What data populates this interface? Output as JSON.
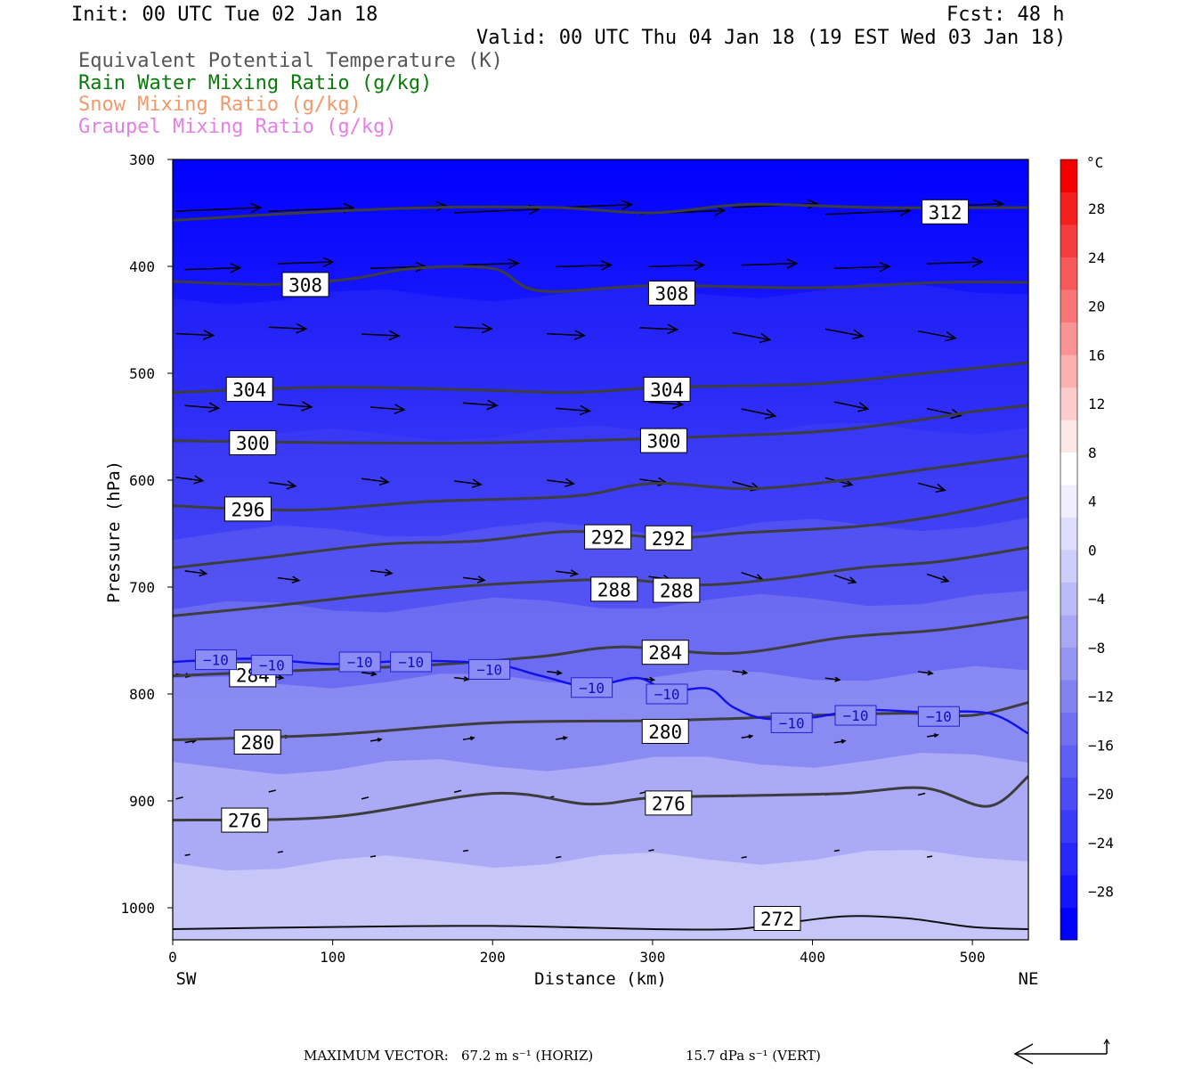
{
  "header": {
    "init": "Init: 00 UTC Tue 02 Jan 18",
    "fcst": "Fcst:   48 h",
    "valid": "Valid: 00 UTC Thu 04 Jan 18 (19 EST Wed 03 Jan 18)"
  },
  "legend": [
    {
      "text": "Equivalent Potential Temperature (K)",
      "color": "#555555"
    },
    {
      "text": "Rain Water Mixing Ratio (g/kg)",
      "color": "#0a7a0a"
    },
    {
      "text": "Snow Mixing Ratio (g/kg)",
      "color": "#f0996a"
    },
    {
      "text": "Graupel Mixing Ratio (g/kg)",
      "color": "#e67ee6"
    }
  ],
  "footer": {
    "label": "MAXIMUM VECTOR:",
    "horiz": "67.2 m s⁻¹ (HORIZ)",
    "vert": "15.7 dPa s⁻¹ (VERT)"
  },
  "chart_data": {
    "type": "heatmap",
    "title": "Equivalent Potential Temperature (K)",
    "xlabel": "Distance (km)",
    "ylabel": "Pressure (hPa)",
    "xlim": [
      0,
      535
    ],
    "ylim": [
      1030,
      300
    ],
    "x_ticks": [
      0,
      100,
      200,
      300,
      400,
      500
    ],
    "y_ticks": [
      300,
      400,
      500,
      600,
      700,
      800,
      900,
      1000
    ],
    "x_left_label": "SW",
    "x_right_label": "NE",
    "colorbar": {
      "unit": "°C",
      "ticks": [
        "28",
        "24",
        "20",
        "16",
        "12",
        "8",
        "4",
        "0",
        "−4",
        "−8",
        "−12",
        "−16",
        "−20",
        "−24",
        "−28"
      ],
      "colors": [
        "#0000ff",
        "#1414ff",
        "#2828fb",
        "#3a3af7",
        "#4c4cf4",
        "#5e5ef2",
        "#7070f1",
        "#8282f1",
        "#9595f3",
        "#a8a8f5",
        "#bbbbf8",
        "#cdcdfa",
        "#dedefc",
        "#efeffe",
        "#ffffff",
        "#fde6e6",
        "#fccbcb",
        "#fbb0b0",
        "#fa9393",
        "#f87676",
        "#f75a5a",
        "#f53d3d",
        "#f42020",
        "#f20000"
      ]
    },
    "theta_e_contours": [
      {
        "level": 312,
        "points": [
          [
            0,
            357
          ],
          [
            80,
            350
          ],
          [
            160,
            345
          ],
          [
            240,
            345
          ],
          [
            300,
            350
          ],
          [
            360,
            342
          ],
          [
            440,
            345
          ],
          [
            535,
            345
          ]
        ]
      },
      {
        "level": 308,
        "points": [
          [
            0,
            414
          ],
          [
            60,
            417
          ],
          [
            110,
            412
          ],
          [
            150,
            402
          ],
          [
            200,
            402
          ],
          [
            230,
            423
          ],
          [
            300,
            418
          ],
          [
            400,
            420
          ],
          [
            480,
            415
          ],
          [
            535,
            415
          ]
        ]
      },
      {
        "level": 304,
        "points": [
          [
            0,
            518
          ],
          [
            100,
            513
          ],
          [
            200,
            516
          ],
          [
            250,
            518
          ],
          [
            310,
            513
          ],
          [
            400,
            510
          ],
          [
            470,
            500
          ],
          [
            535,
            490
          ]
        ]
      },
      {
        "level": 300,
        "points": [
          [
            0,
            563
          ],
          [
            100,
            565
          ],
          [
            200,
            565
          ],
          [
            300,
            561
          ],
          [
            400,
            555
          ],
          [
            460,
            545
          ],
          [
            500,
            536
          ],
          [
            535,
            530
          ]
        ]
      },
      {
        "level": 296,
        "points": [
          [
            0,
            624
          ],
          [
            80,
            628
          ],
          [
            160,
            620
          ],
          [
            250,
            615
          ],
          [
            300,
            603
          ],
          [
            360,
            608
          ],
          [
            420,
            600
          ],
          [
            470,
            590
          ],
          [
            535,
            577
          ]
        ]
      },
      {
        "level": 292,
        "points": [
          [
            0,
            682
          ],
          [
            60,
            672
          ],
          [
            130,
            660
          ],
          [
            190,
            657
          ],
          [
            250,
            648
          ],
          [
            310,
            654
          ],
          [
            360,
            649
          ],
          [
            430,
            643
          ],
          [
            480,
            633
          ],
          [
            535,
            616
          ]
        ]
      },
      {
        "level": 288,
        "points": [
          [
            0,
            727
          ],
          [
            60,
            718
          ],
          [
            120,
            708
          ],
          [
            175,
            700
          ],
          [
            230,
            695
          ],
          [
            280,
            693
          ],
          [
            330,
            698
          ],
          [
            380,
            692
          ],
          [
            430,
            682
          ],
          [
            480,
            676
          ],
          [
            535,
            663
          ]
        ]
      },
      {
        "level": 284,
        "points": [
          [
            0,
            783
          ],
          [
            80,
            778
          ],
          [
            160,
            773
          ],
          [
            230,
            765
          ],
          [
            280,
            756
          ],
          [
            350,
            762
          ],
          [
            420,
            747
          ],
          [
            480,
            740
          ],
          [
            535,
            728
          ]
        ]
      },
      {
        "level": 280,
        "points": [
          [
            0,
            843
          ],
          [
            100,
            838
          ],
          [
            200,
            827
          ],
          [
            300,
            825
          ],
          [
            350,
            823
          ],
          [
            400,
            820
          ],
          [
            460,
            818
          ],
          [
            500,
            820
          ],
          [
            535,
            808
          ]
        ]
      },
      {
        "level": 276,
        "points": [
          [
            0,
            918
          ],
          [
            100,
            915
          ],
          [
            200,
            893
          ],
          [
            260,
            903
          ],
          [
            300,
            897
          ],
          [
            360,
            895
          ],
          [
            420,
            893
          ],
          [
            470,
            888
          ],
          [
            510,
            905
          ],
          [
            535,
            877
          ]
        ]
      },
      {
        "level": 272,
        "points": [
          [
            0,
            1020
          ],
          [
            100,
            1018
          ],
          [
            200,
            1017
          ],
          [
            300,
            1020
          ],
          [
            350,
            1020
          ],
          [
            380,
            1015
          ],
          [
            420,
            1008
          ],
          [
            460,
            1010
          ],
          [
            500,
            1018
          ],
          [
            535,
            1020
          ]
        ]
      }
    ],
    "theta_e_labels": [
      {
        "text": "312",
        "x": 483,
        "p": 349
      },
      {
        "text": "308",
        "x": 83,
        "p": 417
      },
      {
        "text": "308",
        "x": 312,
        "p": 425
      },
      {
        "text": "304",
        "x": 48,
        "p": 515
      },
      {
        "text": "304",
        "x": 309,
        "p": 515
      },
      {
        "text": "300",
        "x": 50,
        "p": 565
      },
      {
        "text": "300",
        "x": 307,
        "p": 563
      },
      {
        "text": "296",
        "x": 47,
        "p": 627
      },
      {
        "text": "292",
        "x": 272,
        "p": 653
      },
      {
        "text": "292",
        "x": 310,
        "p": 654
      },
      {
        "text": "288",
        "x": 276,
        "p": 702
      },
      {
        "text": "288",
        "x": 315,
        "p": 703
      },
      {
        "text": "284",
        "x": 50,
        "p": 782
      },
      {
        "text": "284",
        "x": 308,
        "p": 761
      },
      {
        "text": "280",
        "x": 53,
        "p": 845
      },
      {
        "text": "280",
        "x": 308,
        "p": 835
      },
      {
        "text": "276",
        "x": 45,
        "p": 918
      },
      {
        "text": "276",
        "x": 310,
        "p": 902
      },
      {
        "text": "272",
        "x": 378,
        "p": 1010
      }
    ],
    "isotherm": {
      "level": -10,
      "color": "#1010ee",
      "points": [
        [
          0,
          770
        ],
        [
          50,
          767
        ],
        [
          100,
          772
        ],
        [
          150,
          769
        ],
        [
          200,
          772
        ],
        [
          230,
          783
        ],
        [
          260,
          793
        ],
        [
          290,
          785
        ],
        [
          310,
          797
        ],
        [
          335,
          795
        ],
        [
          350,
          812
        ],
        [
          370,
          823
        ],
        [
          400,
          822
        ],
        [
          430,
          815
        ],
        [
          470,
          817
        ],
        [
          510,
          818
        ],
        [
          535,
          837
        ]
      ],
      "labels": [
        {
          "text": "−10",
          "x": 27,
          "p": 768
        },
        {
          "text": "−10",
          "x": 62,
          "p": 773
        },
        {
          "text": "−10",
          "x": 117,
          "p": 770
        },
        {
          "text": "−10",
          "x": 149,
          "p": 770
        },
        {
          "text": "−10",
          "x": 198,
          "p": 777
        },
        {
          "text": "−10",
          "x": 262,
          "p": 794
        },
        {
          "text": "−10",
          "x": 309,
          "p": 800
        },
        {
          "text": "−10",
          "x": 387,
          "p": 827
        },
        {
          "text": "−10",
          "x": 427,
          "p": 820
        },
        {
          "text": "−10",
          "x": 479,
          "p": 821
        }
      ]
    },
    "temperature_field_note": "shaded temperature from about -30 °C aloft to about -2 °C near the surface"
  }
}
